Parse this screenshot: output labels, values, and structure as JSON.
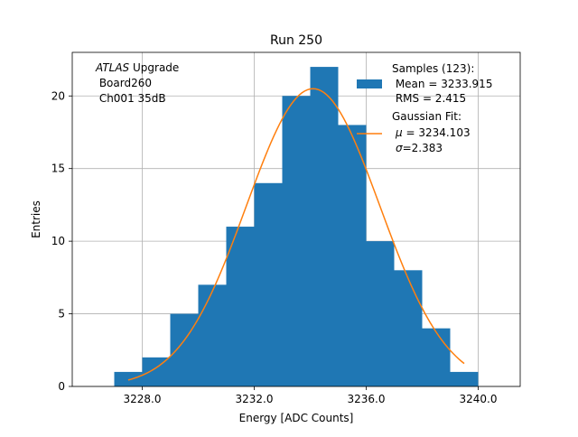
{
  "chart_data": {
    "type": "bar",
    "title": "Run 250",
    "xlabel": "Energy [ADC Counts]",
    "ylabel": "Entries",
    "xlim": [
      3225.5,
      3241.5
    ],
    "ylim": [
      0,
      23
    ],
    "grid": true,
    "x_ticks": [
      "3228.0",
      "3232.0",
      "3236.0",
      "3240.0"
    ],
    "x_tick_values": [
      3228,
      3232,
      3236,
      3240
    ],
    "y_ticks": [
      "0",
      "5",
      "10",
      "15",
      "20"
    ],
    "y_tick_values": [
      0,
      5,
      10,
      15,
      20
    ],
    "bins": [
      {
        "x0": 3227,
        "x1": 3228,
        "count": 1
      },
      {
        "x0": 3228,
        "x1": 3229,
        "count": 2
      },
      {
        "x0": 3229,
        "x1": 3230,
        "count": 5
      },
      {
        "x0": 3230,
        "x1": 3231,
        "count": 7
      },
      {
        "x0": 3231,
        "x1": 3232,
        "count": 11
      },
      {
        "x0": 3232,
        "x1": 3233,
        "count": 14
      },
      {
        "x0": 3233,
        "x1": 3234,
        "count": 20
      },
      {
        "x0": 3234,
        "x1": 3235,
        "count": 22
      },
      {
        "x0": 3235,
        "x1": 3236,
        "count": 18
      },
      {
        "x0": 3236,
        "x1": 3237,
        "count": 10
      },
      {
        "x0": 3237,
        "x1": 3238,
        "count": 8
      },
      {
        "x0": 3238,
        "x1": 3239,
        "count": 4
      },
      {
        "x0": 3239,
        "x1": 3240,
        "count": 1
      }
    ],
    "fit": {
      "type": "gaussian",
      "mu": 3234.103,
      "sigma": 2.383,
      "amplitude": 20.5,
      "x_range": [
        3227.5,
        3239.5
      ]
    },
    "annotation": {
      "italic": "ATLAS",
      "line1_rest": " Upgrade",
      "line2": " Board260",
      "line3": " Ch001 35dB"
    },
    "legend": {
      "placement": "top-right",
      "hist_lines": [
        "Samples (123):",
        " Mean = 3233.915",
        " RMS = 2.415"
      ],
      "fit_line1": "Gaussian Fit:",
      "fit_mu_sym": "μ",
      "fit_mu_rest": " = 3234.103",
      "fit_sigma_sym": "σ",
      "fit_sigma_rest": "=2.383"
    },
    "colors": {
      "bars": "#1f77b4",
      "fit": "#ff7f0e",
      "grid": "#b0b0b0"
    }
  }
}
